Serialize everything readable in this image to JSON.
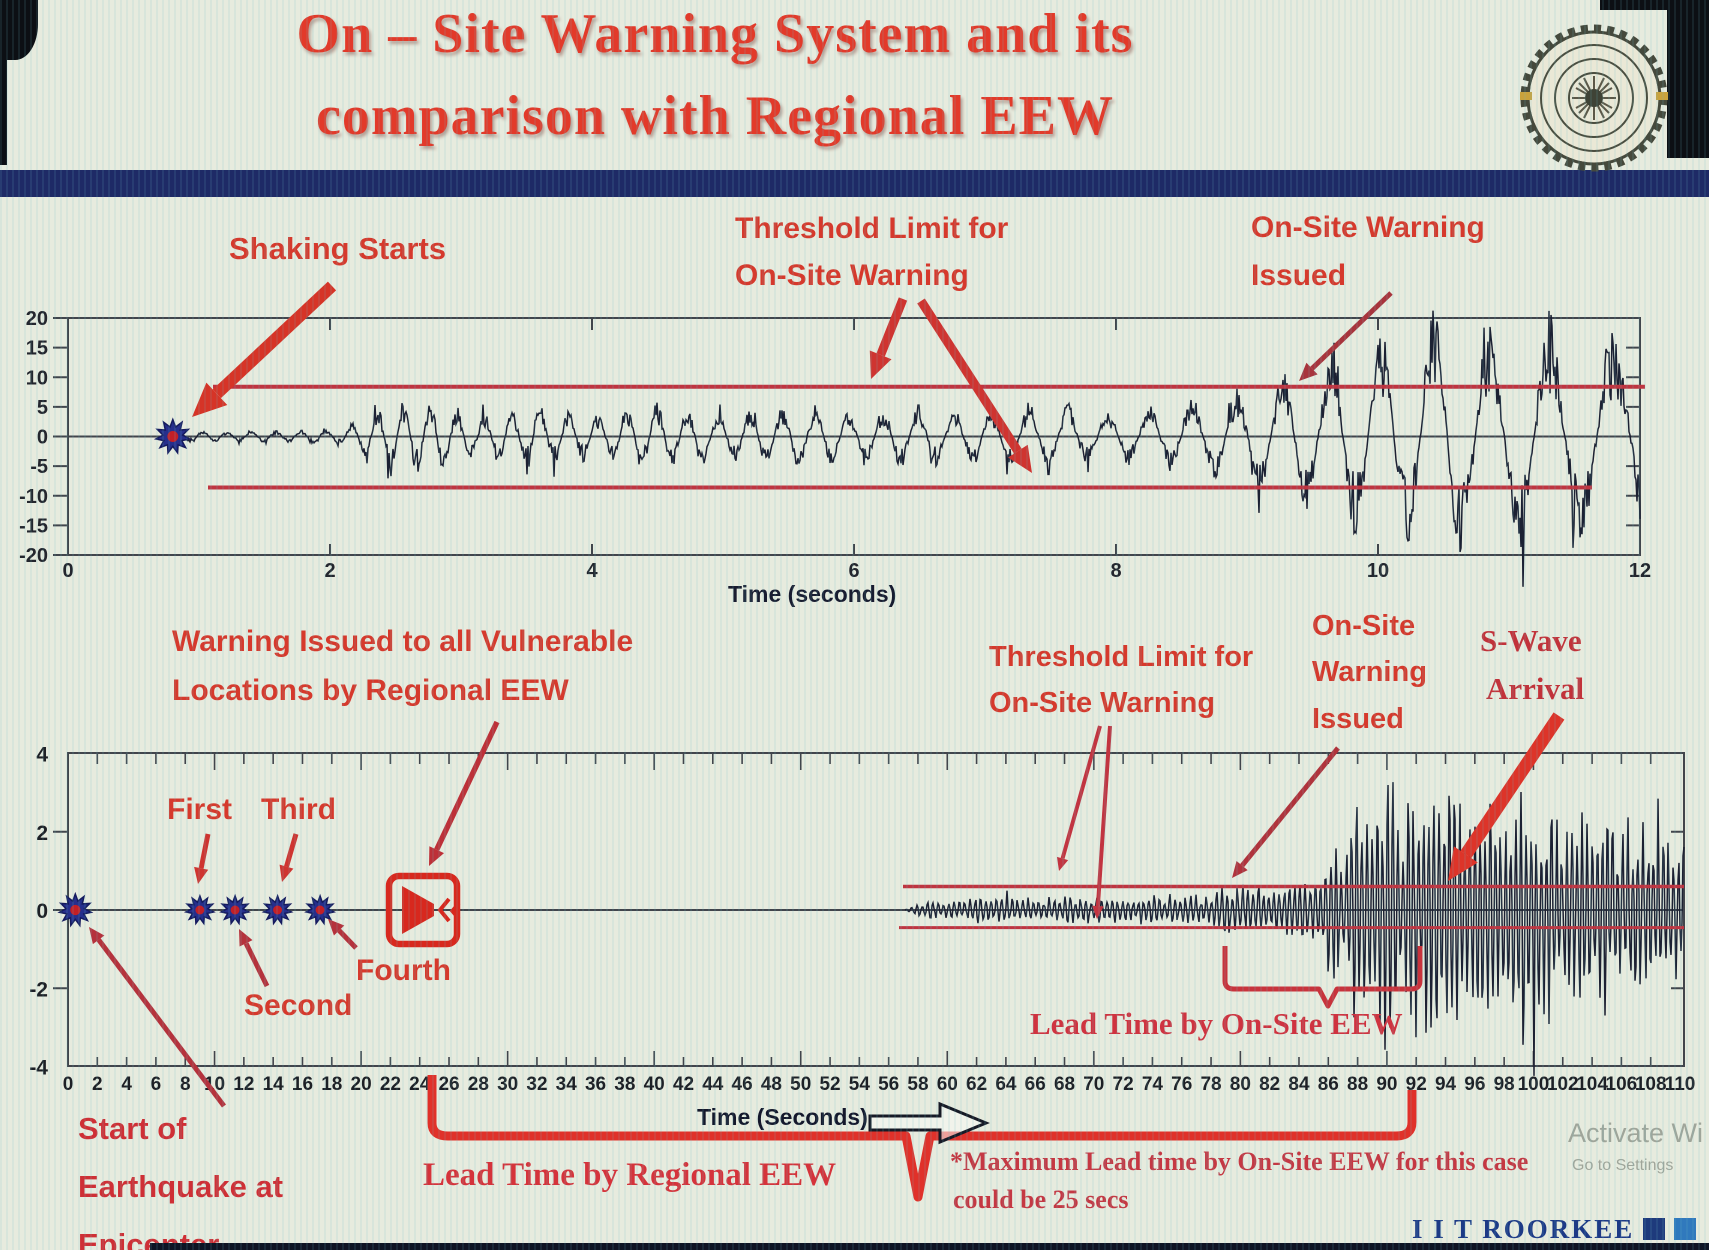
{
  "title": {
    "line1": "On – Site Warning System and its",
    "line2": "comparison with Regional EEW"
  },
  "chart_data": [
    {
      "type": "line",
      "name": "on-site single station seismogram",
      "xlabel": "Time (seconds)",
      "ylabel": "",
      "x_range": [
        0,
        12
      ],
      "y_range": [
        -20,
        20
      ],
      "x_ticks": [
        0,
        2,
        4,
        6,
        8,
        10,
        12
      ],
      "y_ticks": [
        20,
        15,
        10,
        5,
        0,
        -5,
        -10,
        -15,
        -20
      ],
      "grid": false,
      "threshold_upper": 8.4,
      "threshold_lower": -8.6,
      "shaking_start_t": 0.8,
      "onsite_warning_issued_t": 9.4,
      "freq_hz_start": 5.8,
      "freq_hz_end": 1.9,
      "envelope": [
        [
          0,
          0
        ],
        [
          0.78,
          0
        ],
        [
          0.82,
          0.9
        ],
        [
          1.3,
          0.7
        ],
        [
          2.1,
          1.1
        ],
        [
          2.45,
          4.8
        ],
        [
          2.8,
          5.2
        ],
        [
          3.1,
          3.0
        ],
        [
          3.6,
          4.2
        ],
        [
          4.1,
          3.0
        ],
        [
          4.5,
          4.6
        ],
        [
          5.0,
          3.2
        ],
        [
          5.5,
          4.8
        ],
        [
          6.0,
          3.4
        ],
        [
          6.4,
          4.4
        ],
        [
          7.0,
          3.6
        ],
        [
          7.5,
          5.2
        ],
        [
          7.9,
          3.4
        ],
        [
          8.3,
          4.2
        ],
        [
          8.7,
          5.6
        ],
        [
          9.0,
          7.0
        ],
        [
          9.35,
          9.2
        ],
        [
          9.6,
          11
        ],
        [
          9.9,
          14
        ],
        [
          10.2,
          16
        ],
        [
          10.6,
          17.5
        ],
        [
          11.0,
          15
        ],
        [
          11.3,
          17
        ],
        [
          11.7,
          14
        ],
        [
          12,
          15.5
        ]
      ]
    },
    {
      "type": "line",
      "name": "regional comparison seismogram",
      "xlabel": "Time (Seconds)",
      "ylabel": "",
      "x_range": [
        0,
        110
      ],
      "y_range": [
        -4,
        4
      ],
      "x_ticks": [
        0,
        2,
        4,
        6,
        8,
        10,
        12,
        14,
        16,
        18,
        20,
        22,
        24,
        26,
        28,
        30,
        32,
        34,
        36,
        38,
        40,
        42,
        44,
        46,
        48,
        50,
        52,
        54,
        56,
        58,
        60,
        62,
        64,
        66,
        68,
        70,
        72,
        74,
        76,
        78,
        80,
        82,
        84,
        86,
        88,
        90,
        92,
        94,
        96,
        98,
        100,
        102,
        104,
        106,
        108,
        110
      ],
      "y_ticks": [
        4,
        2,
        0,
        -2,
        -4
      ],
      "grid": false,
      "threshold_upper": 0.6,
      "threshold_lower": -0.45,
      "epicenter_t": 0.5,
      "p_wave_detections": [
        {
          "label": "First",
          "t": 9.0
        },
        {
          "label": "Second",
          "t": 11.4
        },
        {
          "label": "Third",
          "t": 14.3
        },
        {
          "label": "Fourth",
          "t": 17.2
        }
      ],
      "regional_warning_t": 24.2,
      "onsite_warning_t": 79.5,
      "s_wave_arrival_t": 94,
      "lead_time_regional_span": [
        24.8,
        91.8
      ],
      "lead_time_onsite_span": [
        79.0,
        92.3
      ],
      "max_lead_time_note_secs": 25,
      "freq_hz_start": 2.6,
      "freq_hz_end": 2.9,
      "envelope": [
        [
          0,
          0
        ],
        [
          57,
          0
        ],
        [
          58,
          0.15
        ],
        [
          60,
          0.22
        ],
        [
          63,
          0.3
        ],
        [
          66,
          0.25
        ],
        [
          69,
          0.32
        ],
        [
          72,
          0.27
        ],
        [
          75,
          0.33
        ],
        [
          78,
          0.3
        ],
        [
          79.5,
          0.65
        ],
        [
          81,
          0.45
        ],
        [
          83,
          0.5
        ],
        [
          85,
          0.7
        ],
        [
          86,
          1.6
        ],
        [
          87,
          1.1
        ],
        [
          88,
          2.6
        ],
        [
          89,
          2.1
        ],
        [
          90,
          3.1
        ],
        [
          91,
          2.4
        ],
        [
          92,
          2.9
        ],
        [
          94,
          2.6
        ],
        [
          96,
          2.8
        ],
        [
          98,
          2.3
        ],
        [
          100,
          2.6
        ],
        [
          102,
          2.1
        ],
        [
          104,
          2.4
        ],
        [
          106,
          1.9
        ],
        [
          108,
          2.1
        ],
        [
          110,
          1.6
        ]
      ]
    }
  ],
  "top_labels": {
    "shaking_starts": "Shaking Starts",
    "threshold_line1": "Threshold Limit for",
    "threshold_line2": "On-Site Warning",
    "issued_line1": "On-Site Warning",
    "issued_line2": "Issued"
  },
  "bottom_labels": {
    "regional_line1": "Warning Issued to all Vulnerable",
    "regional_line2": "Locations by Regional EEW",
    "threshold_line1": "Threshold Limit for",
    "threshold_line2": "On-Site Warning",
    "onsite_line1": "On-Site",
    "onsite_line2": "Warning",
    "onsite_line3": "Issued",
    "swave_line1": "S-Wave",
    "swave_line2": "Arrival",
    "lead_onsite": "Lead Time by On-Site EEW",
    "lead_regional": "Lead Time by Regional EEW",
    "note_line1": "*Maximum Lead time by On-Site EEW for this case",
    "note_line2": "could be 25 secs",
    "start_line1": "Start of",
    "start_line2": "Earthquake at",
    "start_line3": "Epicenter"
  },
  "footer": {
    "brand": "I I T ROORKEE",
    "watermark_line1": "Activate Wi",
    "watermark_line2": "Go to Settings"
  },
  "colors": {
    "accent_red": "#d6392c",
    "bright_red": "#dd3429",
    "crimson": "#b5343c",
    "threshold_red": "#bf3440",
    "navy_bar": "#1e2a66",
    "waveform": "#1c2133",
    "axis": "#41454c",
    "marker_blue": "#262f8c",
    "marker_center": "#c21f26",
    "footer_navy": "#1d3a86",
    "footer_blue": "#2f7abd",
    "footer_green": "#1f8c4b"
  }
}
